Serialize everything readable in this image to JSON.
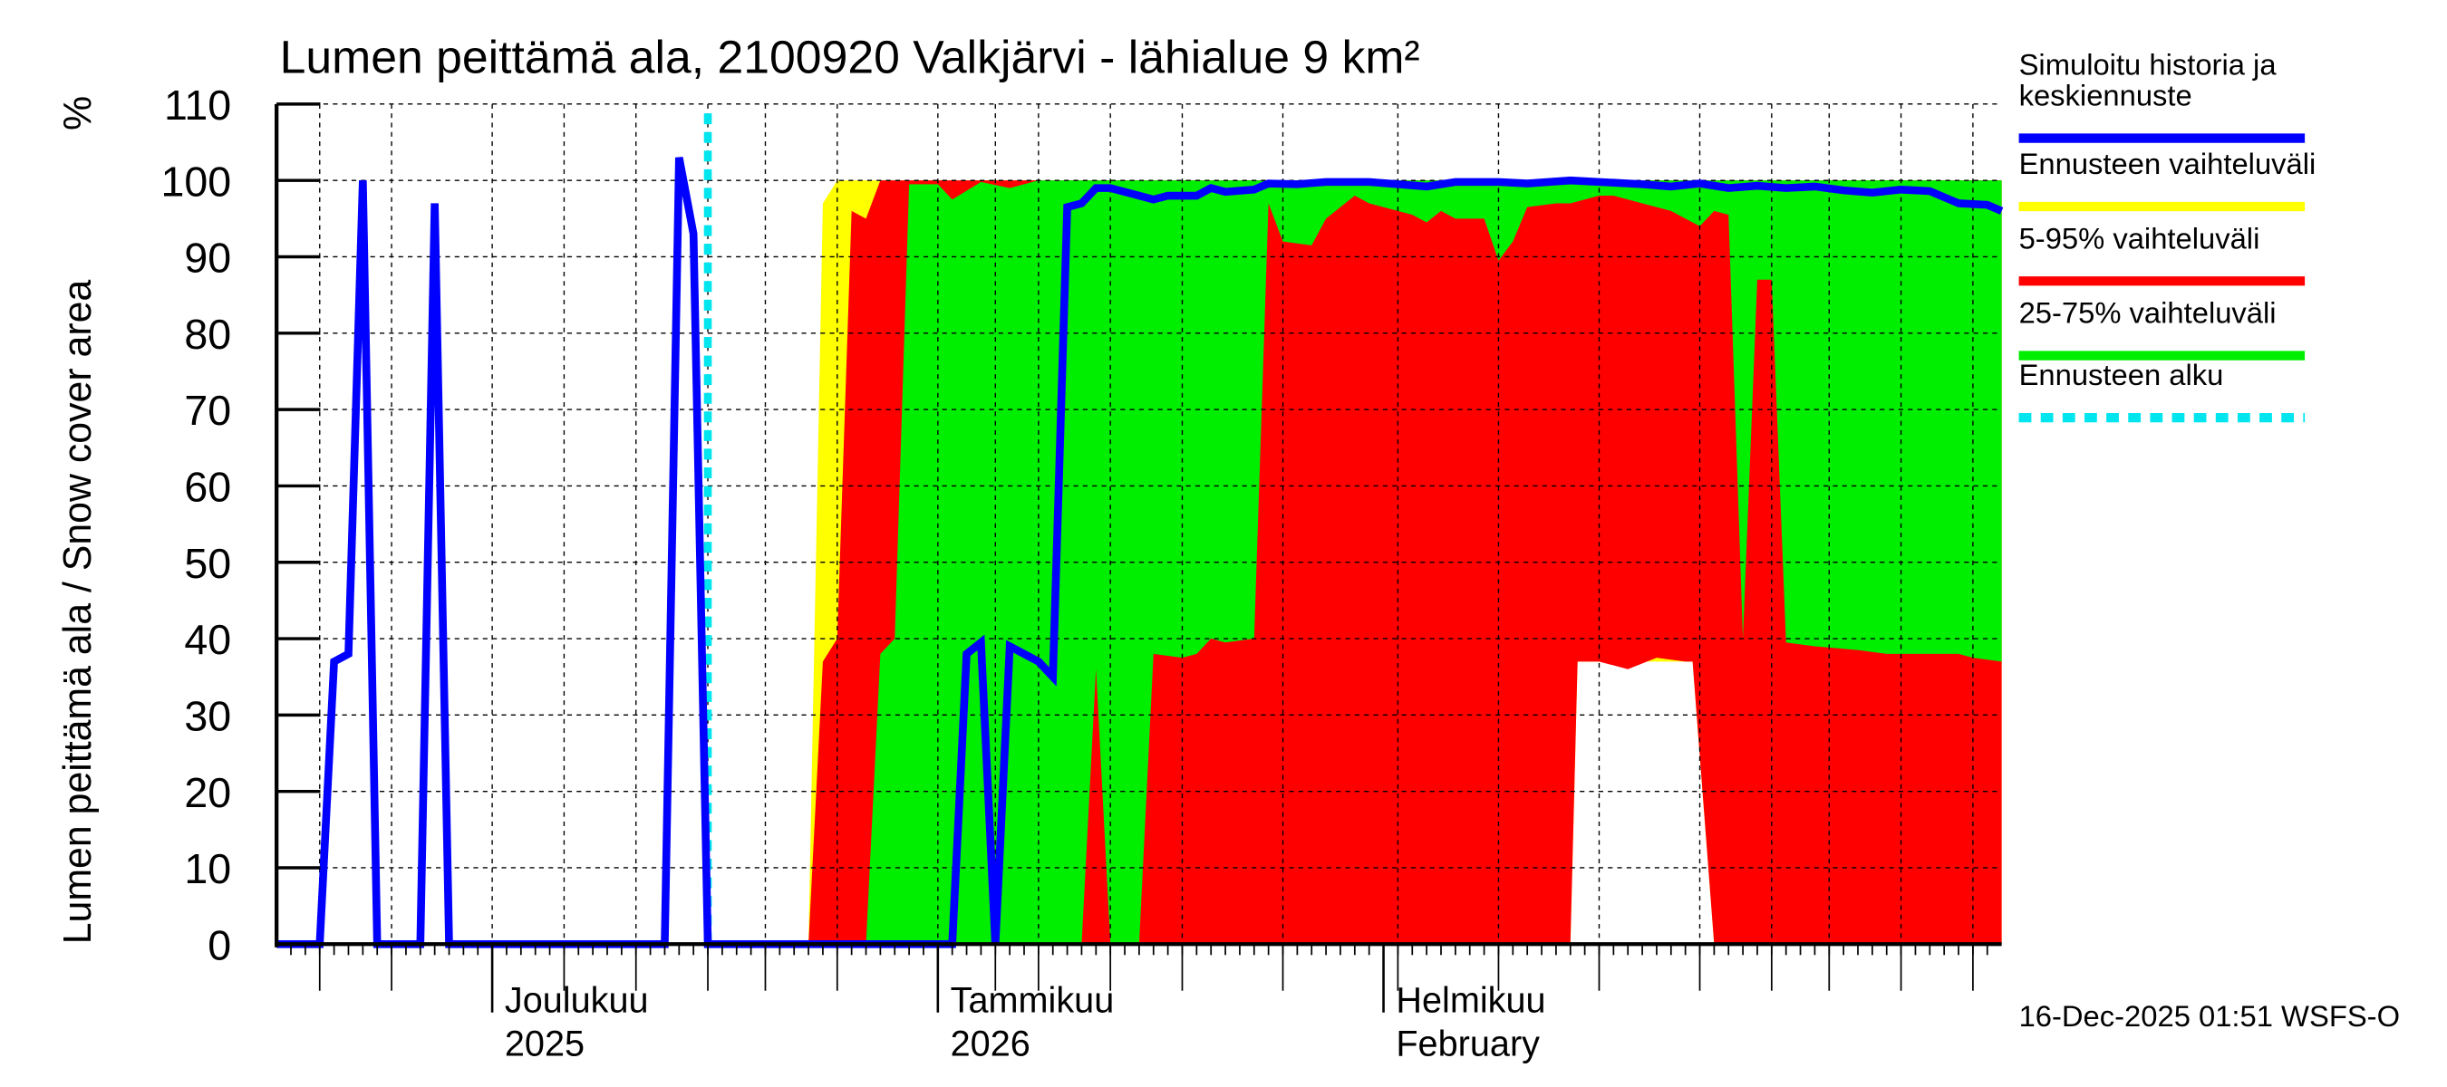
{
  "title": "Lumen peittämä ala, 2100920 Valkjärvi - lähialue 9 km²",
  "footer": "16-Dec-2025 01:51 WSFS-O",
  "y_axis_label": "Lumen peittämä ala / Snow cover area",
  "y_unit": "%",
  "legend": [
    {
      "label_lines": [
        "Simuloitu historia ja",
        "keskiennuste"
      ],
      "color": "#0000ff",
      "style": "solid"
    },
    {
      "label_lines": [
        "Ennusteen vaihteluväli"
      ],
      "color": "#ffff00",
      "style": "solid"
    },
    {
      "label_lines": [
        "5-95% vaihteluväli"
      ],
      "color": "#ff0000",
      "style": "solid"
    },
    {
      "label_lines": [
        "25-75% vaihteluväli"
      ],
      "color": "#00ee00",
      "style": "solid"
    },
    {
      "label_lines": [
        "Ennusteen alku"
      ],
      "color": "#00e5ee",
      "style": "dashed"
    }
  ],
  "x_labels": [
    {
      "day": 15,
      "lines": [
        "Joulukuu",
        "2025"
      ]
    },
    {
      "day": 46,
      "lines": [
        "Tammikuu",
        "2026"
      ]
    },
    {
      "day": 77,
      "lines": [
        "Helmikuu",
        "February"
      ]
    }
  ],
  "chart_data": {
    "type": "area",
    "title": "Lumen peittämä ala, 2100920 Valkjärvi - lähialue 9 km²",
    "xlabel": "",
    "ylabel": "Lumen peittämä ala / Snow cover area %",
    "x_unit": "days since 2025-11-16",
    "xlim": [
      0,
      120
    ],
    "ylim": [
      0,
      110
    ],
    "yticks": [
      0,
      10,
      20,
      30,
      40,
      50,
      60,
      70,
      80,
      90,
      100,
      110
    ],
    "grid": true,
    "legend_position": "right",
    "forecast_start_day": 30,
    "series": [
      {
        "name": "Ennusteen vaihteluväli (upper)",
        "color": "#ffff00",
        "points": [
          [
            37,
            0
          ],
          [
            38,
            97
          ],
          [
            39,
            100
          ],
          [
            120,
            100
          ]
        ]
      },
      {
        "name": "Ennusteen vaihteluväli (lower)",
        "color": "#ffff00",
        "points": [
          [
            37,
            0
          ],
          [
            90,
            0
          ],
          [
            90.5,
            37
          ],
          [
            98,
            37
          ],
          [
            98.5,
            37
          ],
          [
            100,
            0
          ],
          [
            101,
            0
          ],
          [
            102,
            30
          ],
          [
            103,
            0
          ],
          [
            120,
            0
          ]
        ]
      },
      {
        "name": "5-95% upper",
        "color": "#ff0000",
        "points": [
          [
            37,
            0
          ],
          [
            38,
            37
          ],
          [
            39,
            40
          ],
          [
            40,
            96
          ],
          [
            41,
            95
          ],
          [
            42,
            100
          ],
          [
            120,
            100
          ]
        ]
      },
      {
        "name": "5-95% lower",
        "color": "#ff0000",
        "points": [
          [
            37,
            0
          ],
          [
            90,
            0
          ],
          [
            90.5,
            37
          ],
          [
            92,
            37
          ],
          [
            94,
            36
          ],
          [
            96,
            37.5
          ],
          [
            98,
            37
          ],
          [
            98.5,
            37
          ],
          [
            100,
            0
          ],
          [
            120,
            0
          ]
        ]
      },
      {
        "name": "25-75% upper",
        "color": "#00ee00",
        "points": [
          [
            41,
            0
          ],
          [
            42,
            38
          ],
          [
            43,
            40
          ],
          [
            44,
            99.5
          ],
          [
            46,
            99.5
          ],
          [
            47,
            97.5
          ],
          [
            49,
            99.8
          ],
          [
            51,
            99
          ],
          [
            53,
            100
          ],
          [
            120,
            100
          ]
        ]
      },
      {
        "name": "25-75% lower",
        "color": "#00ee00",
        "points": [
          [
            41,
            0
          ],
          [
            56,
            0
          ],
          [
            57,
            36
          ],
          [
            58,
            0
          ],
          [
            60,
            0
          ],
          [
            61,
            38
          ],
          [
            63,
            37.5
          ],
          [
            64,
            38
          ],
          [
            65,
            40
          ],
          [
            66,
            39.5
          ],
          [
            68,
            40
          ],
          [
            69,
            97
          ],
          [
            70,
            92
          ],
          [
            72,
            91.5
          ],
          [
            73,
            95
          ],
          [
            75,
            98
          ],
          [
            76,
            97
          ],
          [
            78,
            96
          ],
          [
            79,
            95.5
          ],
          [
            80,
            94.5
          ],
          [
            81,
            96
          ],
          [
            82,
            95
          ],
          [
            84,
            95
          ],
          [
            85,
            89.5
          ],
          [
            86,
            92
          ],
          [
            87,
            96.5
          ],
          [
            89,
            97
          ],
          [
            90,
            97
          ],
          [
            92,
            98
          ],
          [
            93,
            98
          ],
          [
            95,
            97
          ],
          [
            97,
            96
          ],
          [
            99,
            94
          ],
          [
            100,
            96
          ],
          [
            101,
            95.5
          ],
          [
            102,
            40
          ],
          [
            103,
            87
          ],
          [
            104,
            87
          ],
          [
            105,
            39.5
          ],
          [
            107,
            39
          ],
          [
            110,
            38.5
          ],
          [
            112,
            38
          ],
          [
            114,
            38
          ],
          [
            117,
            38
          ],
          [
            118,
            37.5
          ],
          [
            120,
            37
          ]
        ]
      },
      {
        "name": "Simuloitu historia ja keskiennuste",
        "color": "#0000ff",
        "points": [
          [
            0,
            0
          ],
          [
            3,
            0
          ],
          [
            4,
            37
          ],
          [
            5,
            38
          ],
          [
            6,
            100
          ],
          [
            7,
            0
          ],
          [
            10,
            0
          ],
          [
            11,
            97
          ],
          [
            12,
            0
          ],
          [
            27,
            0
          ],
          [
            28,
            103
          ],
          [
            29,
            93
          ],
          [
            30,
            0
          ],
          [
            47,
            0
          ],
          [
            48,
            38
          ],
          [
            49,
            39.5
          ],
          [
            50,
            0
          ],
          [
            51,
            39
          ],
          [
            53,
            37
          ],
          [
            54,
            35
          ],
          [
            55,
            96.5
          ],
          [
            56,
            97
          ],
          [
            57,
            99
          ],
          [
            58,
            99
          ],
          [
            60,
            98
          ],
          [
            61,
            97.5
          ],
          [
            62,
            98
          ],
          [
            64,
            98
          ],
          [
            65,
            99
          ],
          [
            66,
            98.5
          ],
          [
            68,
            98.8
          ],
          [
            69,
            99.6
          ],
          [
            71,
            99.5
          ],
          [
            73,
            99.8
          ],
          [
            76,
            99.8
          ],
          [
            78,
            99.5
          ],
          [
            80,
            99.2
          ],
          [
            82,
            99.8
          ],
          [
            85,
            99.8
          ],
          [
            87,
            99.6
          ],
          [
            90,
            100
          ],
          [
            92,
            99.8
          ],
          [
            95,
            99.5
          ],
          [
            97,
            99.2
          ],
          [
            99,
            99.6
          ],
          [
            101,
            99
          ],
          [
            103,
            99.3
          ],
          [
            105,
            99
          ],
          [
            107,
            99.2
          ],
          [
            109,
            98.7
          ],
          [
            111,
            98.4
          ],
          [
            113,
            98.8
          ],
          [
            115,
            98.6
          ],
          [
            117,
            97
          ],
          [
            119,
            96.8
          ],
          [
            120,
            96
          ]
        ]
      }
    ]
  }
}
